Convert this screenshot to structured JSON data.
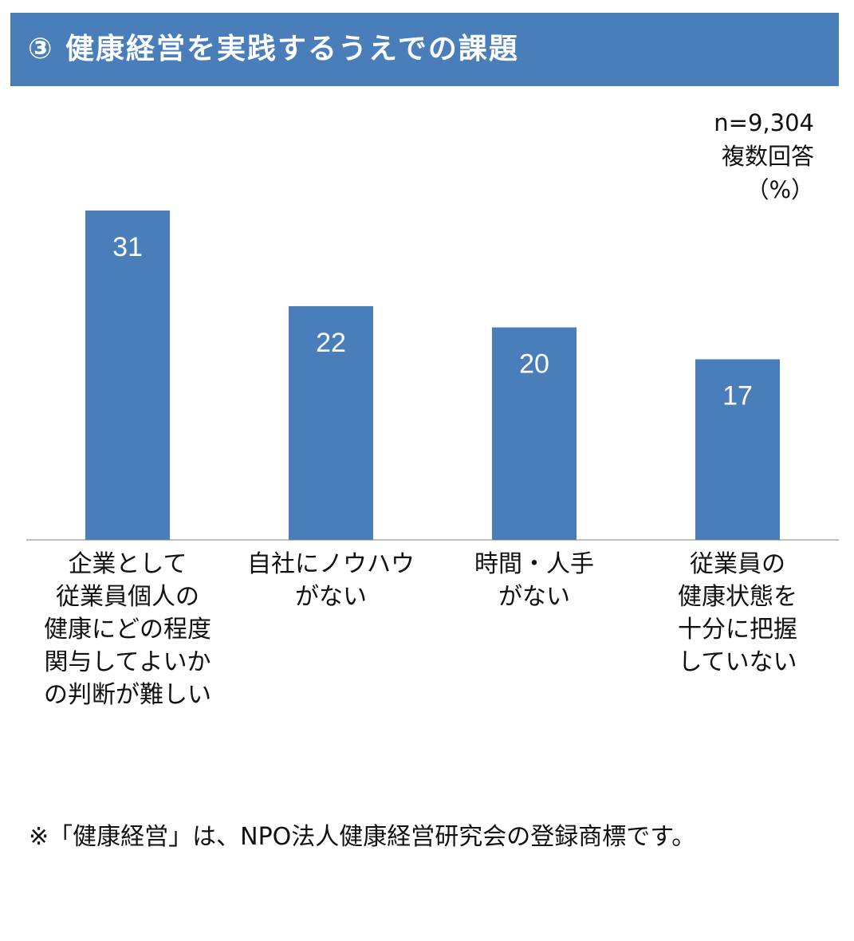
{
  "header": {
    "title": "③ 健康経営を実践するうえでの課題"
  },
  "meta": {
    "sample": "n=9,304",
    "answer_type": "複数回答",
    "unit": "（%）"
  },
  "colors": {
    "header_bg": "#4a7ebb",
    "bar": "#4a7ebb",
    "bar_label": "#ffffff",
    "axis": "#bfbfbf"
  },
  "chart_data": {
    "type": "bar",
    "categories": [
      "企業として\n従業員個人の\n健康にどの程度\n関与してよいか\nの判断が難しい",
      "自社にノウハウ\nがない",
      "時間・人手\nがない",
      "従業員の\n健康状態を\n十分に把握\nしていない"
    ],
    "values": [
      31,
      22,
      20,
      17
    ],
    "unit": "%",
    "ylim": [
      0,
      40
    ],
    "grid": false,
    "data_labels": "inside-top"
  },
  "footnote": "※「健康経営」は、NPO法人健康経営研究会の登録商標です。"
}
